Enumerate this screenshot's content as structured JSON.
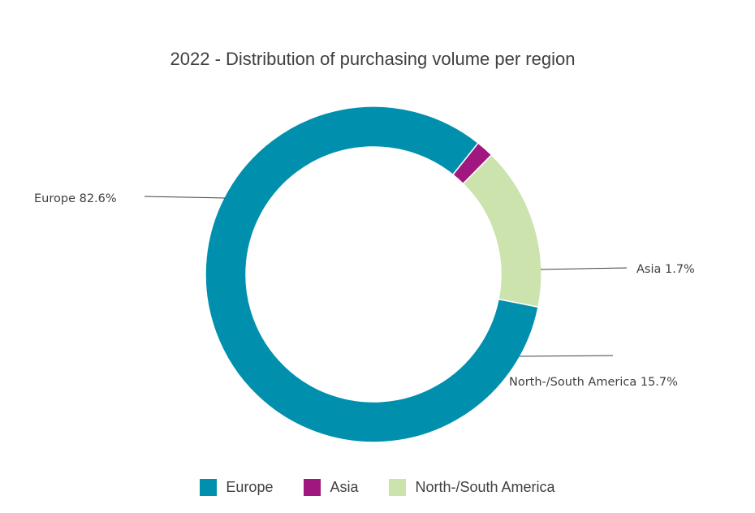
{
  "chart_data": {
    "type": "pie",
    "title": "2022 - Distribution of purchasing volume per region",
    "categories": [
      "Europe",
      "Asia",
      "North-/South America"
    ],
    "values": [
      82.6,
      1.7,
      15.7
    ],
    "unit": "%",
    "colors": [
      "#0090ad",
      "#a0177f",
      "#cce3ad"
    ],
    "labels": [
      "Europe 82.6%",
      "Asia 1.7%",
      "North-/South America 15.7%"
    ],
    "legend": {
      "position": "bottom",
      "items": [
        "Europe",
        "Asia",
        "North-/South America"
      ]
    }
  }
}
